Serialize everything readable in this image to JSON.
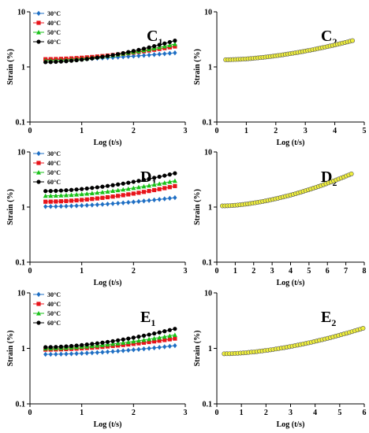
{
  "chart_data": [
    {
      "panel": "C",
      "title": "C",
      "title_sub": "1",
      "type": "line",
      "xlabel": "Log (t/s)",
      "ylabel": "Strain (%)",
      "xlim": [
        0,
        3
      ],
      "xticks": [
        0,
        1,
        2,
        3
      ],
      "ylim": [
        0.1,
        10
      ],
      "yscale": "log",
      "yticks": [
        0.1,
        1,
        10
      ],
      "legend_position": "top-left",
      "series": [
        {
          "name": "30°C",
          "color": "#1f6fc4",
          "marker": "diamond",
          "x_range": [
            0.3,
            2.8
          ],
          "y_start": 1.35,
          "y_end": 1.8
        },
        {
          "name": "40°C",
          "color": "#e8141b",
          "marker": "square",
          "x_range": [
            0.3,
            2.8
          ],
          "y_start": 1.38,
          "y_end": 2.35
        },
        {
          "name": "50°C",
          "color": "#19c219",
          "marker": "triangle",
          "x_range": [
            0.3,
            2.8
          ],
          "y_start": 1.3,
          "y_end": 2.6
        },
        {
          "name": "60°C",
          "color": "#000000",
          "marker": "circle",
          "x_range": [
            0.3,
            2.8
          ],
          "y_start": 1.22,
          "y_end": 3.0
        }
      ]
    },
    {
      "panel": "C2",
      "title": "C",
      "title_sub": "2",
      "type": "scatter",
      "xlabel": "Log (t/s)",
      "ylabel": "Strain (%)",
      "xlim": [
        0,
        5
      ],
      "xticks": [
        0,
        1,
        2,
        3,
        4,
        5
      ],
      "ylim": [
        0.1,
        10
      ],
      "yscale": "log",
      "yticks": [
        0.1,
        1,
        10
      ],
      "series": [
        {
          "name": "",
          "color": "#f0f03c",
          "marker": "circle",
          "x_range": [
            0.3,
            4.6
          ],
          "y_start": 1.35,
          "y_end": 3.0
        }
      ]
    },
    {
      "panel": "D",
      "title": "D",
      "title_sub": "1",
      "type": "line",
      "xlabel": "Log (t/s)",
      "ylabel": "Strain (%)",
      "xlim": [
        0,
        3
      ],
      "xticks": [
        0,
        1,
        2,
        3
      ],
      "ylim": [
        0.1,
        10
      ],
      "yscale": "log",
      "yticks": [
        0.1,
        1,
        10
      ],
      "legend_position": "top-left",
      "series": [
        {
          "name": "30°C",
          "color": "#1f6fc4",
          "marker": "diamond",
          "x_range": [
            0.3,
            2.8
          ],
          "y_start": 1.02,
          "y_end": 1.48
        },
        {
          "name": "40°C",
          "color": "#e8141b",
          "marker": "square",
          "x_range": [
            0.3,
            2.8
          ],
          "y_start": 1.25,
          "y_end": 2.4
        },
        {
          "name": "50°C",
          "color": "#19c219",
          "marker": "triangle",
          "x_range": [
            0.3,
            2.8
          ],
          "y_start": 1.6,
          "y_end": 3.0
        },
        {
          "name": "60°C",
          "color": "#000000",
          "marker": "circle",
          "x_range": [
            0.3,
            2.8
          ],
          "y_start": 1.95,
          "y_end": 4.1
        }
      ]
    },
    {
      "panel": "D2",
      "title": "D",
      "title_sub": "2",
      "type": "scatter",
      "xlabel": "Log (t/s)",
      "ylabel": "Strain (%)",
      "xlim": [
        0,
        8
      ],
      "xticks": [
        0,
        1,
        2,
        3,
        4,
        5,
        6,
        7,
        8
      ],
      "ylim": [
        0.1,
        10
      ],
      "yscale": "log",
      "yticks": [
        0.1,
        1,
        10
      ],
      "series": [
        {
          "name": "",
          "color": "#f0f03c",
          "marker": "circle",
          "x_range": [
            0.3,
            7.3
          ],
          "y_start": 1.05,
          "y_end": 4.0
        }
      ]
    },
    {
      "panel": "E",
      "title": "E",
      "title_sub": "1",
      "type": "line",
      "xlabel": "Log (t/s)",
      "ylabel": "Strain (%)",
      "xlim": [
        0,
        3
      ],
      "xticks": [
        0,
        1,
        2,
        3
      ],
      "ylim": [
        0.1,
        10
      ],
      "yscale": "log",
      "yticks": [
        0.1,
        1,
        10
      ],
      "legend_position": "top-left",
      "series": [
        {
          "name": "30°C",
          "color": "#1f6fc4",
          "marker": "diamond",
          "x_range": [
            0.3,
            2.8
          ],
          "y_start": 0.78,
          "y_end": 1.12
        },
        {
          "name": "40°C",
          "color": "#e8141b",
          "marker": "square",
          "x_range": [
            0.3,
            2.8
          ],
          "y_start": 0.95,
          "y_end": 1.5
        },
        {
          "name": "50°C",
          "color": "#19c219",
          "marker": "triangle",
          "x_range": [
            0.3,
            2.8
          ],
          "y_start": 1.0,
          "y_end": 1.75
        },
        {
          "name": "60°C",
          "color": "#000000",
          "marker": "circle",
          "x_range": [
            0.3,
            2.8
          ],
          "y_start": 1.05,
          "y_end": 2.25
        }
      ]
    },
    {
      "panel": "E2",
      "title": "E",
      "title_sub": "2",
      "type": "scatter",
      "xlabel": "Log (t/s)",
      "ylabel": "Strain (%)",
      "xlim": [
        0,
        6
      ],
      "xticks": [
        0,
        1,
        2,
        3,
        4,
        5,
        6
      ],
      "ylim": [
        0.1,
        10
      ],
      "yscale": "log",
      "yticks": [
        0.1,
        1,
        10
      ],
      "series": [
        {
          "name": "",
          "color": "#f0f03c",
          "marker": "circle",
          "x_range": [
            0.3,
            5.95
          ],
          "y_start": 0.8,
          "y_end": 2.3
        }
      ]
    }
  ]
}
